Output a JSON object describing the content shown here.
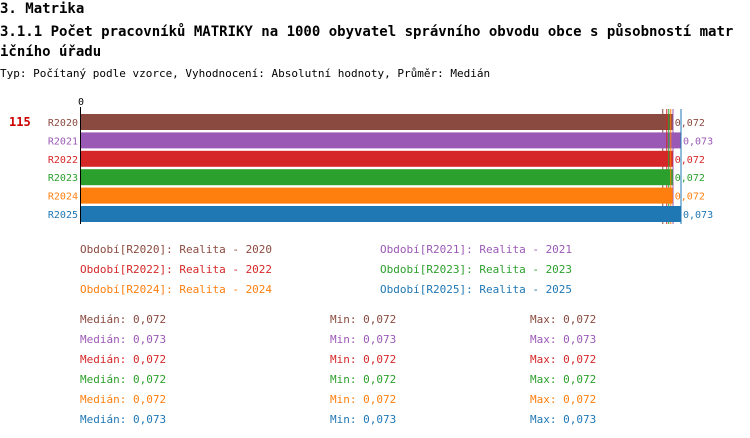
{
  "header": {
    "title": "3. Matrika",
    "subtitle": "3.1.1 Počet pracovníků MATRIKY na 1000 obyvatel správního obvodu obce s působností matričního úřadu",
    "info": "Typ: Počítaný podle vzorce, Vyhodnocení: Absolutní hodnoty, Průměr: Medián"
  },
  "chart_data": {
    "type": "bar",
    "orientation": "horizontal",
    "row_label": "115",
    "axis_zero_label": "0",
    "categories": [
      "R2020",
      "R2021",
      "R2022",
      "R2023",
      "R2024",
      "R2025"
    ],
    "values": [
      0.072,
      0.073,
      0.072,
      0.072,
      0.072,
      0.073
    ],
    "value_labels": [
      "0,072",
      "0,073",
      "0,072",
      "0,072",
      "0,072",
      "0,073"
    ],
    "colors": [
      "#8b4a3f",
      "#9b59b6",
      "#d62728",
      "#2ca02c",
      "#ff7f0e",
      "#1f77b4"
    ],
    "xlim": [
      0,
      0.073
    ]
  },
  "legend": [
    {
      "text": "Období[R2020]: Realita - 2020",
      "color": "#8b4a3f"
    },
    {
      "text": "Období[R2021]: Realita - 2021",
      "color": "#9b59b6"
    },
    {
      "text": "Období[R2022]: Realita - 2022",
      "color": "#d62728"
    },
    {
      "text": "Období[R2023]: Realita - 2023",
      "color": "#2ca02c"
    },
    {
      "text": "Období[R2024]: Realita - 2024",
      "color": "#ff7f0e"
    },
    {
      "text": "Období[R2025]: Realita - 2025",
      "color": "#1f77b4"
    }
  ],
  "stats": [
    {
      "median": "Medián: 0,072",
      "min": "Min: 0,072",
      "max": "Max: 0,072",
      "color": "#8b4a3f"
    },
    {
      "median": "Medián: 0,073",
      "min": "Min: 0,073",
      "max": "Max: 0,073",
      "color": "#9b59b6"
    },
    {
      "median": "Medián: 0,072",
      "min": "Min: 0,072",
      "max": "Max: 0,072",
      "color": "#d62728"
    },
    {
      "median": "Medián: 0,072",
      "min": "Min: 0,072",
      "max": "Max: 0,072",
      "color": "#2ca02c"
    },
    {
      "median": "Medián: 0,072",
      "min": "Min: 0,072",
      "max": "Max: 0,072",
      "color": "#ff7f0e"
    },
    {
      "median": "Medián: 0,073",
      "min": "Min: 0,073",
      "max": "Max: 0,073",
      "color": "#1f77b4"
    }
  ]
}
